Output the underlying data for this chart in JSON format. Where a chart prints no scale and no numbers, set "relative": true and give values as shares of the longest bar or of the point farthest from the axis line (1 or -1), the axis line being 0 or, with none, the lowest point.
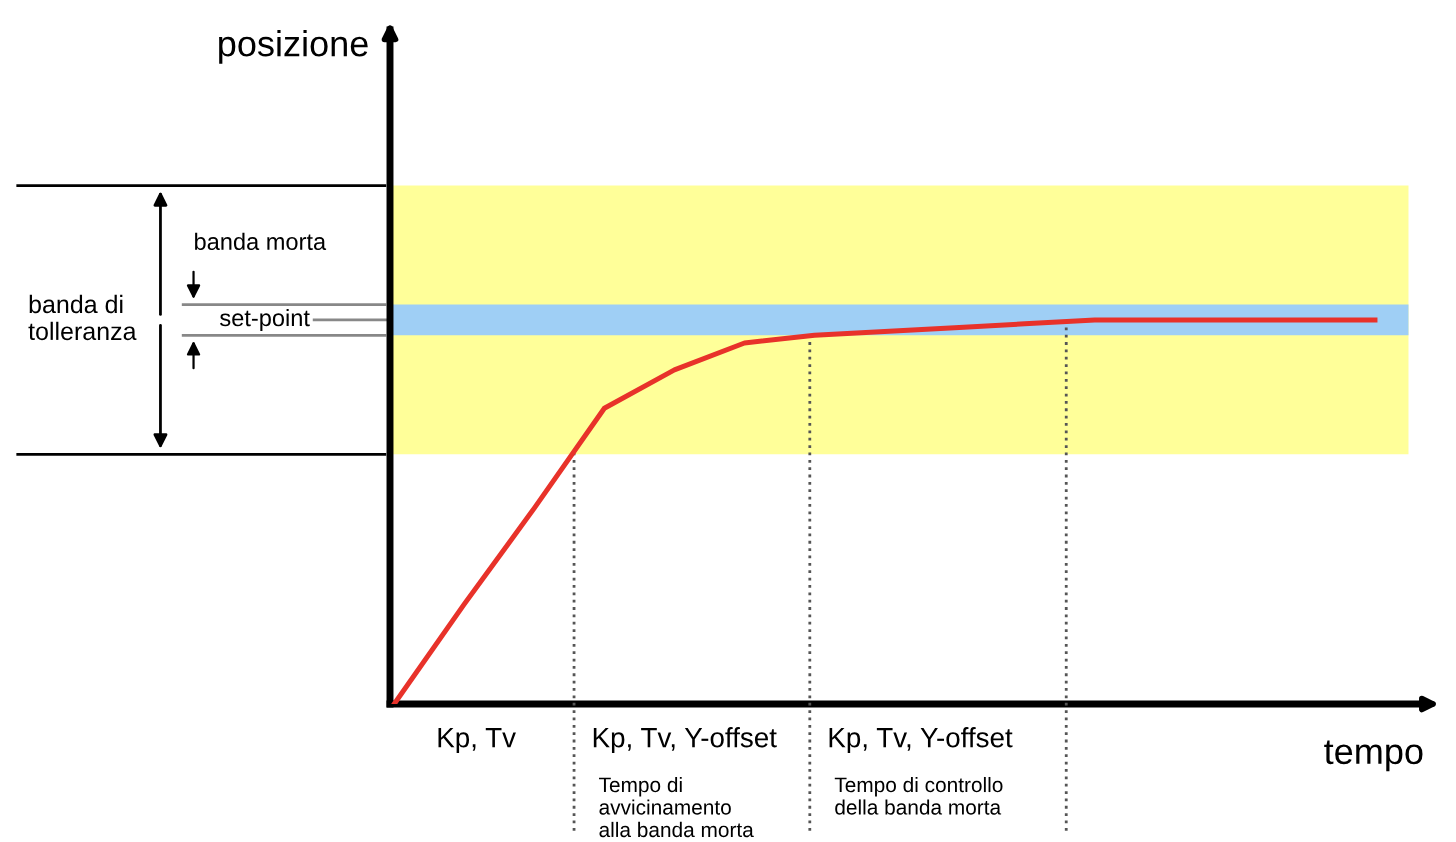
{
  "chart_data": {
    "type": "line",
    "relative": true,
    "xlabel": "tempo",
    "categories": [
      null,
      null,
      null,
      null,
      null,
      null,
      null,
      null,
      null,
      null,
      null,
      null,
      null,
      null,
      null
    ],
    "series": [
      {
        "color": "#e8322a",
        "values": [
          0,
          0.26,
          0.51,
          0.77,
          0.87,
          0.94,
          0.96,
          0.97,
          0.98,
          0.99,
          1,
          1,
          1,
          1,
          1
        ]
      }
    ],
    "bands": [
      {
        "axis": "y",
        "from": 0.65,
        "to": 1.35,
        "color": "#ffff99"
      },
      {
        "axis": "y",
        "from": 0.96,
        "to": 1.04,
        "color": "#9fcff5"
      }
    ],
    "ref_lines": [
      {
        "axis": "y",
        "value": 1,
        "label": "set-point",
        "color": "#888888",
        "line_style": "solid"
      }
    ],
    "annotations": [
      "Kp, Tv",
      "Kp, Tv, Y-offset",
      "Kp, Tv, Y-offset",
      "Tempo di\navvicinamento\nalla banda morta",
      "Tempo di controllo\ndella banda morta",
      "banda di\ntolleranza",
      "banda morta",
      "posizione"
    ],
    "grid": false,
    "legend": false,
    "marker": "none",
    "line_style": "solid"
  }
}
